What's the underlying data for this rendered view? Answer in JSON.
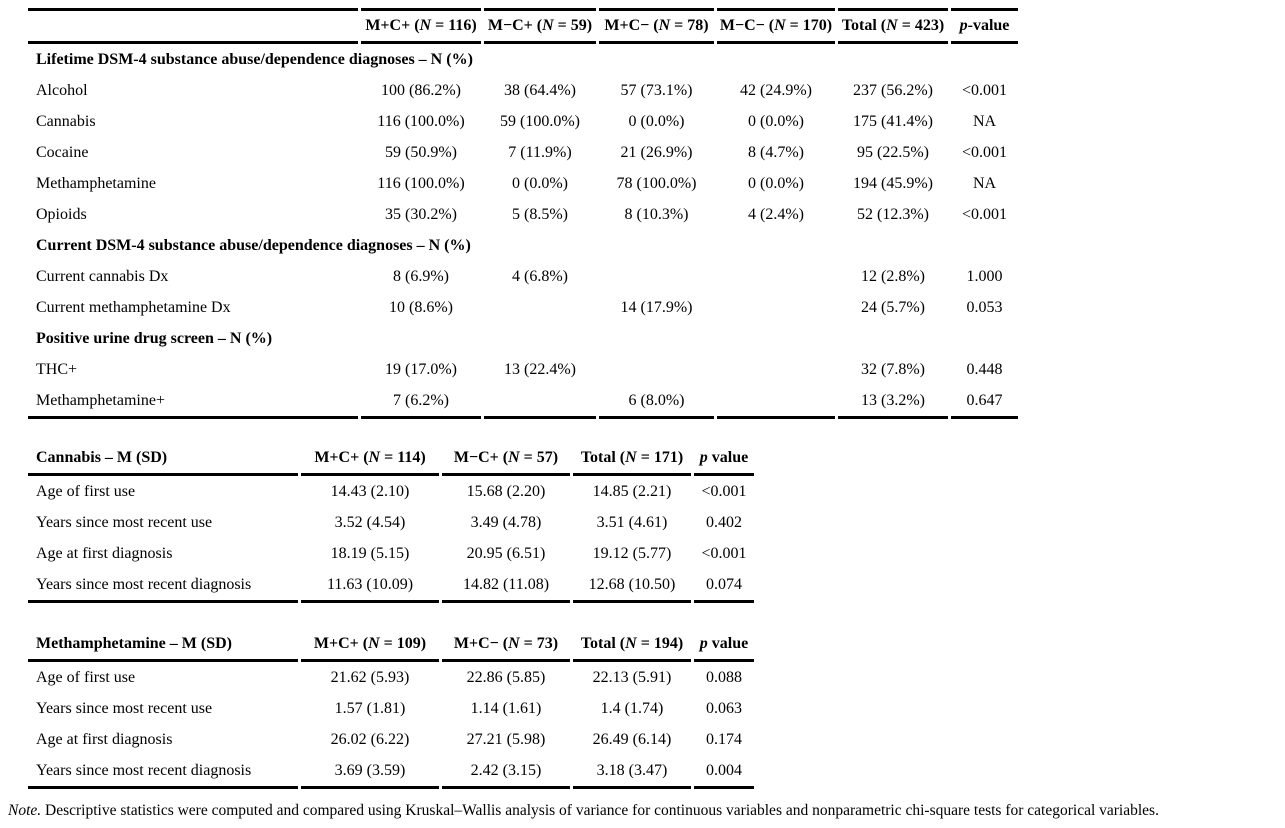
{
  "table1": {
    "columns": [
      "",
      "M+C+ (N = 116)",
      "M−C+ (N = 59)",
      "M+C− (N = 78)",
      "M−C− (N = 170)",
      "Total (N = 423)",
      "p-value"
    ],
    "sections": [
      {
        "header": "Lifetime DSM-4 substance abuse/dependence diagnoses – N (%)",
        "rows": [
          {
            "label": "Alcohol",
            "values": [
              "100 (86.2%)",
              "38 (64.4%)",
              "57 (73.1%)",
              "42 (24.9%)",
              "237 (56.2%)",
              "<0.001"
            ]
          },
          {
            "label": "Cannabis",
            "values": [
              "116 (100.0%)",
              "59 (100.0%)",
              "0 (0.0%)",
              "0 (0.0%)",
              "175 (41.4%)",
              "NA"
            ]
          },
          {
            "label": "Cocaine",
            "values": [
              "59 (50.9%)",
              "7 (11.9%)",
              "21 (26.9%)",
              "8 (4.7%)",
              "95 (22.5%)",
              "<0.001"
            ]
          },
          {
            "label": "Methamphetamine",
            "values": [
              "116 (100.0%)",
              "0 (0.0%)",
              "78 (100.0%)",
              "0 (0.0%)",
              "194 (45.9%)",
              "NA"
            ]
          },
          {
            "label": "Opioids",
            "values": [
              "35 (30.2%)",
              "5 (8.5%)",
              "8 (10.3%)",
              "4 (2.4%)",
              "52 (12.3%)",
              "<0.001"
            ]
          }
        ]
      },
      {
        "header": "Current DSM-4 substance abuse/dependence diagnoses – N (%)",
        "rows": [
          {
            "label": "Current cannabis Dx",
            "values": [
              "8 (6.9%)",
              "4 (6.8%)",
              "",
              "",
              "12 (2.8%)",
              "1.000"
            ]
          },
          {
            "label": "Current methamphetamine Dx",
            "values": [
              "10 (8.6%)",
              "",
              "14 (17.9%)",
              "",
              "24 (5.7%)",
              "0.053"
            ]
          }
        ]
      },
      {
        "header": "Positive urine drug screen – N (%)",
        "rows": [
          {
            "label": "THC+",
            "values": [
              "19 (17.0%)",
              "13 (22.4%)",
              "",
              "",
              "32 (7.8%)",
              "0.448"
            ]
          },
          {
            "label": "Methamphetamine+",
            "values": [
              "7 (6.2%)",
              "",
              "6 (8.0%)",
              "",
              "13 (3.2%)",
              "0.647"
            ]
          }
        ]
      }
    ]
  },
  "table2": {
    "columns": [
      "Cannabis – M (SD)",
      "M+C+ (N = 114)",
      "M−C+ (N = 57)",
      "Total (N = 171)",
      "p value"
    ],
    "rows": [
      {
        "label": "Age of first use",
        "values": [
          "14.43 (2.10)",
          "15.68 (2.20)",
          "14.85 (2.21)",
          "<0.001"
        ]
      },
      {
        "label": "Years since most recent use",
        "values": [
          "3.52 (4.54)",
          "3.49 (4.78)",
          "3.51 (4.61)",
          "0.402"
        ]
      },
      {
        "label": "Age at first diagnosis",
        "values": [
          "18.19 (5.15)",
          "20.95 (6.51)",
          "19.12 (5.77)",
          "<0.001"
        ]
      },
      {
        "label": "Years since most recent diagnosis",
        "values": [
          "11.63 (10.09)",
          "14.82 (11.08)",
          "12.68 (10.50)",
          "0.074"
        ]
      }
    ]
  },
  "table3": {
    "columns": [
      "Methamphetamine – M (SD)",
      "M+C+ (N = 109)",
      "M+C− (N = 73)",
      "Total (N = 194)",
      "p value"
    ],
    "rows": [
      {
        "label": "Age of first use",
        "values": [
          "21.62 (5.93)",
          "22.86 (5.85)",
          "22.13 (5.91)",
          "0.088"
        ]
      },
      {
        "label": "Years since most recent use",
        "values": [
          "1.57 (1.81)",
          "1.14 (1.61)",
          "1.4 (1.74)",
          "0.063"
        ]
      },
      {
        "label": "Age at first diagnosis",
        "values": [
          "26.02 (6.22)",
          "27.21 (5.98)",
          "26.49 (6.14)",
          "0.174"
        ]
      },
      {
        "label": "Years since most recent diagnosis",
        "values": [
          "3.69 (3.59)",
          "2.42 (3.15)",
          "3.18 (3.47)",
          "0.004"
        ]
      }
    ]
  },
  "note": {
    "prefix": "Note.",
    "text": " Descriptive statistics were computed and compared using Kruskal–Wallis analysis of variance for continuous variables and nonparametric chi-square tests for categorical variables."
  },
  "colors": {
    "text": "#000000",
    "background": "#ffffff",
    "rule": "#000000"
  }
}
